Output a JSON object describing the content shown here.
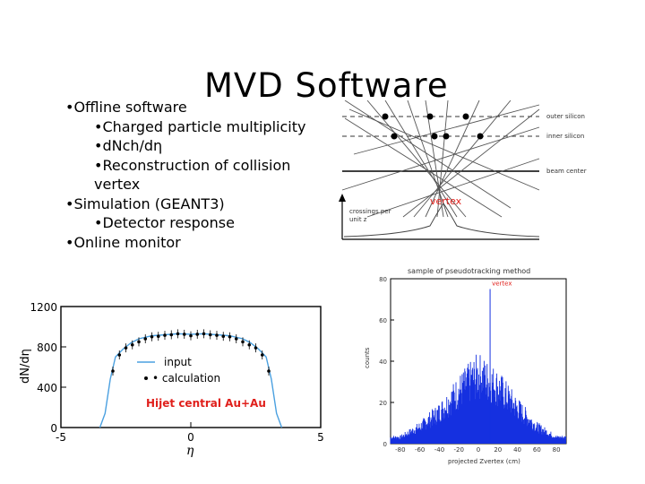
{
  "slide": {
    "title": "MVD Software",
    "bullets": [
      {
        "level": 1,
        "text": "•Offline software"
      },
      {
        "level": 2,
        "text": "•Charged particle multiplicity"
      },
      {
        "level": 2,
        "text": "•dNch/dη"
      },
      {
        "level": 2,
        "text": "•Reconstruction of collision"
      },
      {
        "level": 3,
        "text": "vertex"
      },
      {
        "level": 1,
        "text": "•Simulation (GEANT3)"
      },
      {
        "level": 2,
        "text": "•Detector response"
      },
      {
        "level": 1,
        "text": "•Online monitor"
      }
    ]
  },
  "detector_diagram": {
    "labels": {
      "outer": "outer silicon",
      "inner": "inner silicon",
      "beam": "beam center",
      "vertex": "vertex",
      "ylabel_1": "crossings per",
      "ylabel_2": "unit z"
    },
    "colors": {
      "vertex_label": "#e0201c"
    }
  },
  "chart_data": [
    {
      "type": "line",
      "ylabel": "dN/dη",
      "xlabel": "η",
      "xlim": [
        -5,
        5
      ],
      "ylim": [
        0,
        1200
      ],
      "yticks": [
        "0",
        "400",
        "800",
        "1200"
      ],
      "xticks": [
        "-5",
        "0",
        "5"
      ],
      "legend": [
        {
          "label": "input",
          "color": "#4aa0e0",
          "style": "line"
        },
        {
          "label": "calculation",
          "color": "#000000",
          "style": "points"
        }
      ],
      "annotation": {
        "text": "Hijet central Au+Au",
        "color": "#e0201c"
      },
      "series": [
        {
          "name": "input",
          "x": [
            -3.5,
            -3.3,
            -3.1,
            -2.9,
            -2.6,
            -2.3,
            -2.0,
            -1.5,
            -1.0,
            -0.5,
            0.0,
            0.5,
            1.0,
            1.5,
            2.0,
            2.3,
            2.6,
            2.9,
            3.1,
            3.3,
            3.5
          ],
          "y": [
            0,
            140,
            480,
            700,
            780,
            840,
            880,
            910,
            920,
            930,
            925,
            930,
            920,
            910,
            880,
            840,
            780,
            700,
            480,
            140,
            0
          ]
        },
        {
          "name": "calculation",
          "x": [
            -3.0,
            -2.75,
            -2.5,
            -2.25,
            -2.0,
            -1.75,
            -1.5,
            -1.25,
            -1.0,
            -0.75,
            -0.5,
            -0.25,
            0.0,
            0.25,
            0.5,
            0.75,
            1.0,
            1.25,
            1.5,
            1.75,
            2.0,
            2.25,
            2.5,
            2.75,
            3.0
          ],
          "y": [
            560,
            720,
            790,
            820,
            850,
            880,
            900,
            905,
            915,
            920,
            930,
            925,
            910,
            925,
            930,
            920,
            915,
            905,
            900,
            880,
            850,
            820,
            790,
            720,
            560
          ]
        }
      ]
    },
    {
      "type": "line",
      "title": "sample of pseudotracking method",
      "ylabel": "counts",
      "xlabel": "projected Zvertex (cm)",
      "xlim": [
        -90,
        90
      ],
      "ylim": [
        0,
        80
      ],
      "yticks": [
        "0",
        "20",
        "40",
        "60",
        "80"
      ],
      "xticks": [
        "-80",
        "-60",
        "-40",
        "-20",
        "0",
        "20",
        "40",
        "60",
        "80"
      ],
      "annotation": {
        "text": "vertex",
        "color": "#e0201c",
        "x": 12,
        "y": 75
      },
      "series": [
        {
          "name": "distribution",
          "x": [
            -80,
            -60,
            -40,
            -20,
            0,
            10,
            20,
            40,
            60,
            80
          ],
          "y": [
            3,
            8,
            15,
            25,
            33,
            30,
            27,
            17,
            8,
            3
          ]
        }
      ]
    }
  ]
}
